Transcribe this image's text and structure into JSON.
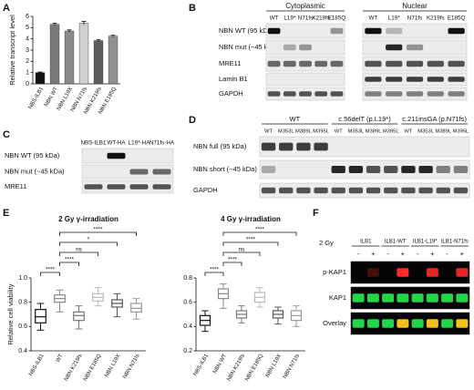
{
  "panel_labels": [
    "A",
    "B",
    "C",
    "D",
    "E",
    "F"
  ],
  "chart_data": [
    {
      "type": "bar",
      "ylabel": "Relative transcript level",
      "categories": [
        "NBS-ILB1",
        "NBN WT",
        "NBN L19X",
        "NBN N71fs",
        "NBN K219fs",
        "NBN E185Q"
      ],
      "values": [
        1.0,
        5.3,
        4.7,
        5.4,
        3.85,
        4.25
      ],
      "errors": [
        0.05,
        0.1,
        0.1,
        0.15,
        0.1,
        0.08
      ],
      "colors": [
        "#111111",
        "#7a7a7a",
        "#8a8a8a",
        "#d0d0d0",
        "#5c5c5c",
        "#909090"
      ],
      "ylim": [
        0,
        6
      ],
      "yticks": [
        0,
        1,
        2,
        3,
        4,
        5,
        6
      ]
    },
    {
      "type": "box",
      "title": "2 Gy γ-irradiation",
      "ylabel": "Relative cell viability",
      "categories": [
        "NBS-ILB1",
        "WT",
        "NBN K219fs",
        "NBN E185Q",
        "NBN L19X",
        "NBN N71fs"
      ],
      "boxes": [
        {
          "min": 0.57,
          "q1": 0.63,
          "median": 0.68,
          "q3": 0.74,
          "max": 0.79
        },
        {
          "min": 0.72,
          "q1": 0.8,
          "median": 0.83,
          "q3": 0.86,
          "max": 0.9
        },
        {
          "min": 0.58,
          "q1": 0.65,
          "median": 0.69,
          "q3": 0.72,
          "max": 0.77
        },
        {
          "min": 0.77,
          "q1": 0.81,
          "median": 0.84,
          "q3": 0.87,
          "max": 0.92
        },
        {
          "min": 0.68,
          "q1": 0.76,
          "median": 0.79,
          "q3": 0.82,
          "max": 0.87
        },
        {
          "min": 0.66,
          "q1": 0.72,
          "median": 0.75,
          "q3": 0.79,
          "max": 0.83
        }
      ],
      "colors": [
        "#111111",
        "#888888",
        "#777777",
        "#bbbbbb",
        "#555555",
        "#999999"
      ],
      "comparisons": [
        {
          "from": "NBS-ILB1",
          "to": "WT",
          "label": "****"
        },
        {
          "from": "WT",
          "to": "NBN K219fs",
          "label": "****"
        },
        {
          "from": "WT",
          "to": "NBN E185Q",
          "label": "ns"
        },
        {
          "from": "WT",
          "to": "NBN L19X",
          "label": "*"
        },
        {
          "from": "WT",
          "to": "NBN N71fs",
          "label": "****"
        }
      ],
      "ylim": [
        0.4,
        1.0
      ],
      "yticks": [
        0.4,
        0.6,
        0.8,
        {
          "value": 1.0,
          "label": "1.0"
        }
      ]
    },
    {
      "type": "box",
      "title": "4 Gy γ-irradiation",
      "categories": [
        "NBS-ILB1",
        "NBN WT",
        "NBN K219fs",
        "NBN E185Q",
        "NBN L19X",
        "NBN N71fs"
      ],
      "boxes": [
        {
          "min": 0.36,
          "q1": 0.41,
          "median": 0.45,
          "q3": 0.49,
          "max": 0.53
        },
        {
          "min": 0.55,
          "q1": 0.63,
          "median": 0.67,
          "q3": 0.71,
          "max": 0.75
        },
        {
          "min": 0.43,
          "q1": 0.47,
          "median": 0.5,
          "q3": 0.53,
          "max": 0.57
        },
        {
          "min": 0.56,
          "q1": 0.6,
          "median": 0.64,
          "q3": 0.68,
          "max": 0.72
        },
        {
          "min": 0.42,
          "q1": 0.47,
          "median": 0.5,
          "q3": 0.53,
          "max": 0.56
        },
        {
          "min": 0.4,
          "q1": 0.45,
          "median": 0.49,
          "q3": 0.53,
          "max": 0.57
        }
      ],
      "colors": [
        "#111111",
        "#888888",
        "#777777",
        "#bbbbbb",
        "#555555",
        "#999999"
      ],
      "comparisons": [
        {
          "from": "NBS-ILB1",
          "to": "NBN WT",
          "label": "****"
        },
        {
          "from": "NBN WT",
          "to": "NBN K219fs",
          "label": "****"
        },
        {
          "from": "NBN WT",
          "to": "NBN E185Q",
          "label": "ns"
        },
        {
          "from": "NBN WT",
          "to": "NBN L19X",
          "label": "****"
        },
        {
          "from": "NBN WT",
          "to": "NBN N71fs",
          "label": "****"
        }
      ],
      "ylim": [
        0.2,
        0.8
      ],
      "yticks": [
        0.2,
        0.4,
        0.6,
        0.8
      ]
    }
  ],
  "blot_b": {
    "headers": [
      "Cytoplasmic",
      "Nuclear"
    ],
    "lanes": [
      "WT",
      "L19*",
      "N71fs",
      "K219fs",
      "E185Q",
      "WT",
      "L19*",
      "N71fs",
      "K219fs",
      "E185Q"
    ],
    "rows": [
      "NBN WT (95 kDa)",
      "NBN mut (~45 kDa)",
      "MRE11",
      "Lamin B1",
      "GAPDH"
    ]
  },
  "blot_c": {
    "lanes": [
      "NBS-ILB1",
      "WT-HA",
      "L19*-HA",
      "N71fs-HA"
    ],
    "rows": [
      "NBN WT (95 kDa)",
      "NBN mut (~45 kDa)",
      "MRE11"
    ]
  },
  "blot_d": {
    "groups": [
      "WT",
      "c.56delT (p.L19*)",
      "c.211insGA (p.N71fs)"
    ],
    "lanes": [
      "WT",
      "M353L",
      "M389L",
      "M395L",
      "WT",
      "M353L",
      "M389L",
      "M395L",
      "WT",
      "M353L",
      "M389L",
      "M395L"
    ],
    "rows": [
      "NBN full (95 kDa)",
      "NBN short (~45 kDa)",
      "GAPDH"
    ]
  },
  "blot_f": {
    "condition": "2 Gy",
    "groups": [
      "ILB1",
      "ILB1-WT",
      "ILB1-L19*",
      "ILB1-N71fs"
    ],
    "treatments": [
      "-",
      "+",
      "-",
      "+",
      "-",
      "+",
      "-",
      "+"
    ],
    "rows": [
      "p-KAP1",
      "KAP1",
      "Overlay"
    ]
  }
}
